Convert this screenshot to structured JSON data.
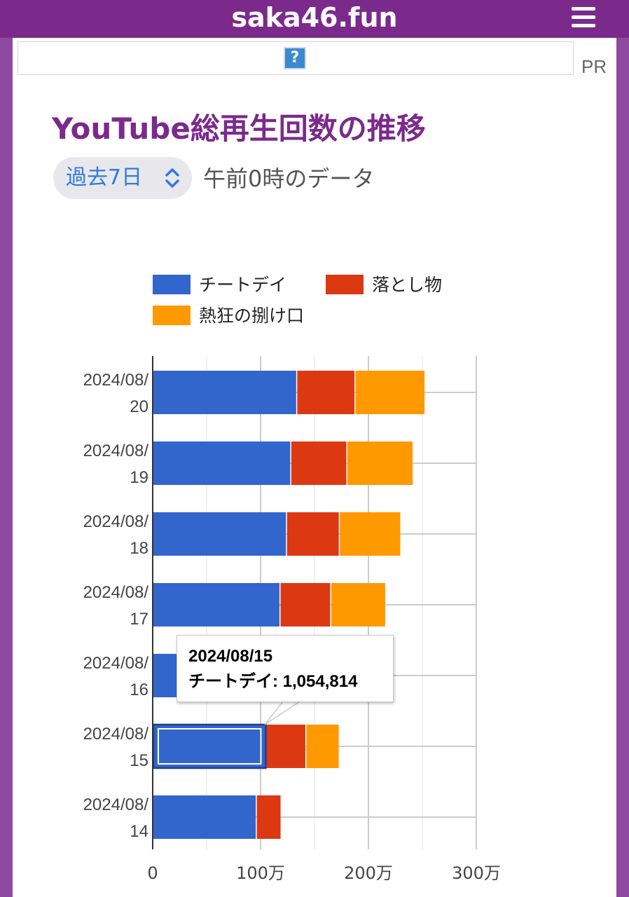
{
  "header": {
    "site_title": "saka46.fun",
    "menu_icon": "hamburger-menu-icon"
  },
  "ad": {
    "icon_glyph": "?",
    "pr_label": "PR"
  },
  "section": {
    "title": "YouTube総再生回数の推移",
    "period_select_value": "過去7日",
    "note": "午前0時のデータ"
  },
  "chart_data": {
    "type": "bar",
    "orientation": "horizontal",
    "stacked": true,
    "categories": [
      "2024/08/20",
      "2024/08/19",
      "2024/08/18",
      "2024/08/17",
      "2024/08/16",
      "2024/08/15",
      "2024/08/14"
    ],
    "category_lines": [
      [
        "2024/08/",
        "20"
      ],
      [
        "2024/08/",
        "19"
      ],
      [
        "2024/08/",
        "18"
      ],
      [
        "2024/08/",
        "17"
      ],
      [
        "2024/08/",
        "16"
      ],
      [
        "2024/08/",
        "15"
      ],
      [
        "2024/08/",
        "14"
      ]
    ],
    "series": [
      {
        "name": "チートデイ",
        "color": "#3366cc",
        "values": [
          1340000,
          1285000,
          1245000,
          1185000,
          1110000,
          1054814,
          965000
        ]
      },
      {
        "name": "落とし物",
        "color": "#dc3912",
        "values": [
          540000,
          520000,
          490000,
          470000,
          440000,
          370000,
          230000
        ]
      },
      {
        "name": "熱狂の捌け口",
        "color": "#ff9900",
        "values": [
          650000,
          615000,
          570000,
          510000,
          420000,
          310000,
          0
        ]
      }
    ],
    "xlim": [
      0,
      3000000
    ],
    "x_ticks": [
      0,
      1000000,
      2000000,
      3000000
    ],
    "x_tick_labels": [
      "0",
      "100万",
      "200万",
      "300万"
    ],
    "grid": true,
    "legend_position": "top",
    "tooltip": {
      "date": "2024/08/15",
      "text": "チートデイ: 1,054,814"
    }
  }
}
